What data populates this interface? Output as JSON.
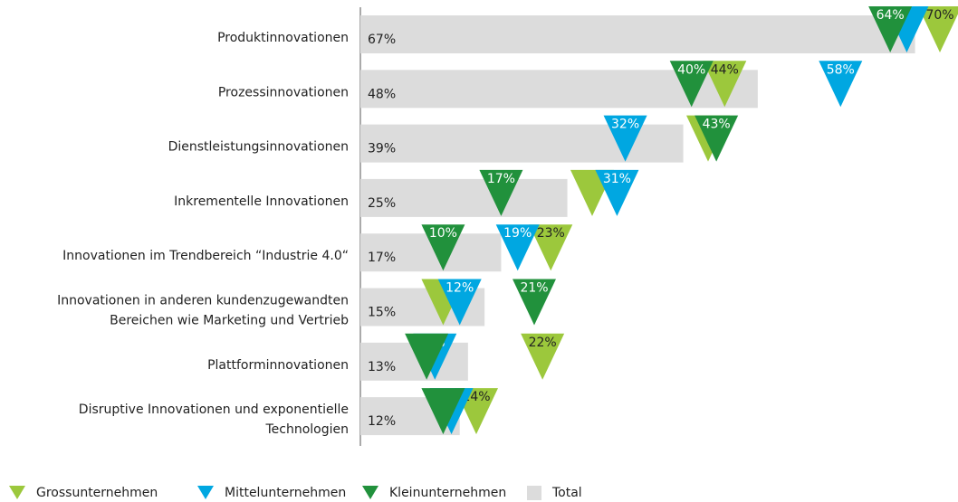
{
  "chart_data": {
    "type": "bar-triangle",
    "categories": [
      [
        "Produktinnovationen"
      ],
      [
        "Prozessinnovationen"
      ],
      [
        "Dienstleistungsinnovationen"
      ],
      [
        "Inkrementelle Innovationen"
      ],
      [
        "Innovationen im Trendbereich “Industrie 4.0“"
      ],
      [
        "Innovationen in anderen kundenzugewandten",
        "Bereichen wie Marketing und Vertrieb"
      ],
      [
        "Plattforminnovationen"
      ],
      [
        "Disruptive Innovationen und exponentielle",
        "Technologien"
      ]
    ],
    "total": {
      "name": "Total",
      "color": "#dcdcdc",
      "values": [
        67,
        48,
        39,
        25,
        17,
        15,
        13,
        12
      ],
      "value_labels": [
        "67%",
        "48%",
        "39%",
        "25%",
        "17%",
        "15%",
        "13%",
        "12%"
      ]
    },
    "series": [
      {
        "name": "Grossunternehmen",
        "color": "#9cc83c",
        "text_color": "#222222",
        "values": [
          70,
          44,
          42,
          28,
          23,
          10,
          22,
          14
        ],
        "value_labels": [
          "70%",
          "44%",
          null,
          null,
          "23%",
          null,
          "22%",
          "14%"
        ]
      },
      {
        "name": "Mittelunternehmen",
        "color": "#00a7e1",
        "text_color": "#ffffff",
        "values": [
          66,
          58,
          32,
          31,
          19,
          12,
          9,
          11
        ],
        "value_labels": [
          null,
          "58%",
          "32%",
          "31%",
          "19%",
          "12%",
          "9%",
          null
        ]
      },
      {
        "name": "Kleinunternehmen",
        "color": "#21913c",
        "text_color": "#ffffff",
        "values": [
          64,
          40,
          43,
          17,
          10,
          21,
          8,
          10
        ],
        "value_labels": [
          "64%",
          "40%",
          "43%",
          "17%",
          "10%",
          "21%",
          null,
          null
        ]
      }
    ],
    "xlim": [
      0,
      70
    ]
  }
}
